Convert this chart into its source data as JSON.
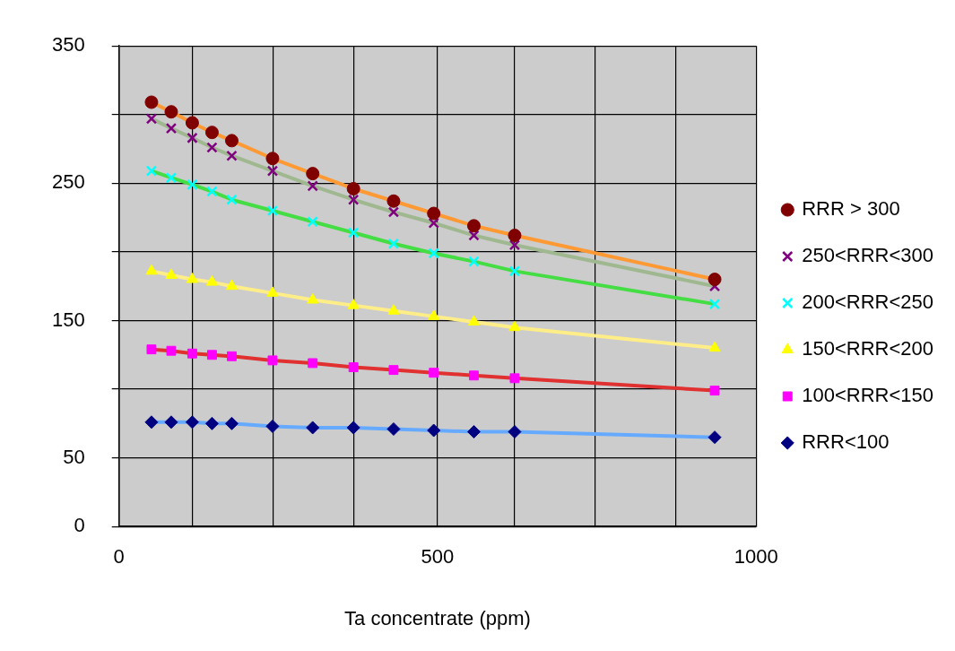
{
  "chart_data": {
    "type": "line",
    "xlabel": "Ta concentrate (ppm)",
    "x": [
      51,
      82,
      115,
      146,
      177,
      241,
      304,
      368,
      431,
      494,
      557,
      621,
      935
    ],
    "xlim": [
      0,
      1000
    ],
    "xticks": [
      0,
      {
        "value": 115.5,
        "label": null
      },
      {
        "value": 241.5,
        "label": null
      },
      {
        "value": 368,
        "label": null
      },
      500,
      {
        "value": 621,
        "label": null
      },
      {
        "value": 747.5,
        "label": null
      },
      {
        "value": 874,
        "label": null
      },
      1000
    ],
    "ylim": [
      0,
      350
    ],
    "yticks": [
      0,
      50,
      {
        "value": 100,
        "label": null
      },
      150,
      {
        "value": 200,
        "label": null
      },
      250,
      {
        "value": 300,
        "label": null
      },
      350
    ],
    "grid": true,
    "legend": "right",
    "series": [
      {
        "name": "RRR > 300",
        "color": "#ff9933",
        "marker": "circle",
        "colors": [
          "#800000",
          "#800000",
          "#800000",
          "#800000",
          "#800000",
          "#800000",
          "#800000",
          "#800000",
          "#800000",
          "#800000",
          "#800000",
          "#800000",
          "#800000"
        ],
        "values": [
          309,
          302,
          294,
          287,
          281,
          268,
          257,
          246,
          237,
          228,
          219,
          212,
          180
        ]
      },
      {
        "name": "250<RRR<300",
        "color": "#a0b890",
        "marker": "cross",
        "colors": [
          "#800080",
          "#800080",
          "#800080",
          "#800080",
          "#800080",
          "#800080",
          "#800080",
          "#800080",
          "#800080",
          "#800080",
          "#800080",
          "#800080",
          "#800080"
        ],
        "values": [
          297,
          290,
          283,
          276,
          270,
          259,
          248,
          238,
          229,
          221,
          212,
          205,
          175
        ]
      },
      {
        "name": "200<RRR<250",
        "color": "#44dd44",
        "marker": "cross",
        "colors": [
          "#00ffff",
          "#00ffff",
          "#00ffff",
          "#00ffff",
          "#00ffff",
          "#00ffff",
          "#00ffff",
          "#00ffff",
          "#00ffff",
          "#00ffff",
          "#00ffff",
          "#00ffff",
          "#00ffff"
        ],
        "values": [
          259,
          254,
          249,
          244,
          238,
          230,
          222,
          214,
          206,
          199,
          193,
          186,
          162
        ]
      },
      {
        "name": "150<RRR<200",
        "color": "#ffee88",
        "marker": "triangle",
        "colors": [
          "#ffff00",
          "#ffff00",
          "#ffff00",
          "#ffff00",
          "#ffff00",
          "#ffff00",
          "#ffff00",
          "#ffff00",
          "#ffff00",
          "#ffff00",
          "#ffff00",
          "#ffff00",
          "#ffff00"
        ],
        "values": [
          186,
          183,
          180,
          178,
          175,
          170,
          165,
          161,
          157,
          153,
          149,
          145,
          130
        ]
      },
      {
        "name": "100<RRR<150",
        "color": "#e03030",
        "marker": "square",
        "colors": [
          "#ff00ff",
          "#ff00ff",
          "#ff00ff",
          "#ff00ff",
          "#ff00ff",
          "#ff00ff",
          "#ff00ff",
          "#ff00ff",
          "#ff00ff",
          "#ff00ff",
          "#ff00ff",
          "#ff00ff",
          "#ff00ff"
        ],
        "values": [
          129,
          128,
          126,
          125,
          124,
          121,
          119,
          116,
          114,
          112,
          110,
          108,
          99
        ]
      },
      {
        "name": "RRR<100",
        "color": "#66aaff",
        "marker": "diamond",
        "colors": [
          "#000080",
          "#000080",
          "#000080",
          "#000080",
          "#000080",
          "#000080",
          "#000080",
          "#000080",
          "#000080",
          "#000080",
          "#000080",
          "#000080",
          "#000080"
        ],
        "values": [
          76,
          76,
          76,
          75,
          75,
          73,
          72,
          72,
          71,
          70,
          69,
          69,
          65
        ]
      }
    ]
  }
}
